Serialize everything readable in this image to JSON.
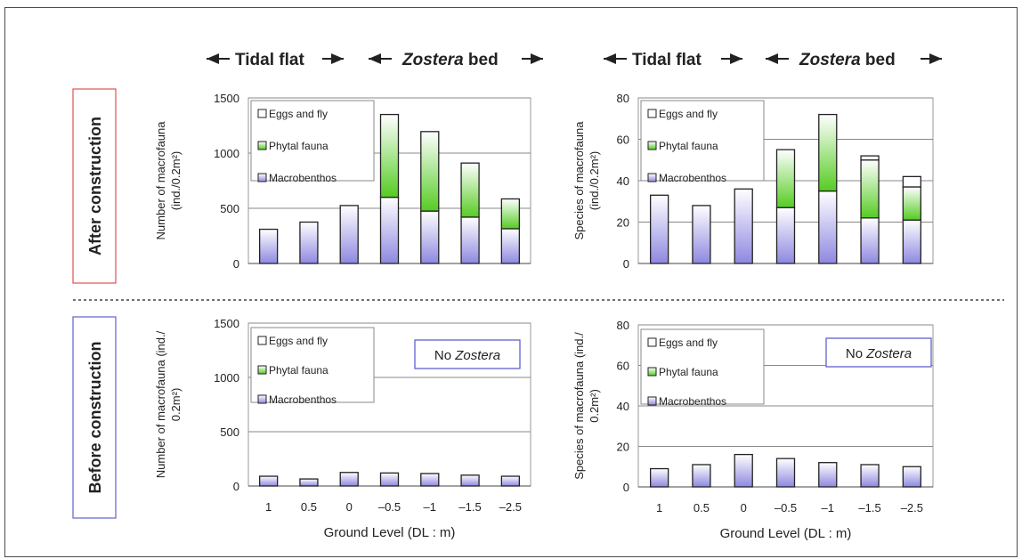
{
  "colors": {
    "macrobenthos_top": "#ffffff",
    "macrobenthos_bottom": "#8e88e0",
    "phytal_top": "#ffffff",
    "phytal_bottom": "#55cc22",
    "eggs": "#ffffff",
    "after_box": "#e05050",
    "before_box": "#6060d0",
    "inset_box": "#6060d0",
    "grid": "#888888",
    "bar_stroke": "#222222"
  },
  "headers": {
    "tidal_flat": "Tidal flat",
    "zostera": "Zostera",
    "bed": " bed"
  },
  "rows": {
    "after": "After construction",
    "before": "Before construction"
  },
  "inset": {
    "no": "No ",
    "zostera": "Zostera"
  },
  "chart_data": [
    {
      "id": "after-number",
      "type": "bar",
      "stacked": true,
      "categories": [
        "1",
        "0.5",
        "0",
        "-0.5",
        "-1",
        "-1.5",
        "-2.5"
      ],
      "show_categories": false,
      "ylabel_line1": "Number of macrofauna",
      "ylabel_line2": "(ind./0.2m²)",
      "ylim": [
        0,
        1500
      ],
      "yticks": [
        0,
        500,
        1000,
        1500
      ],
      "grid": true,
      "legend": [
        "Eggs and fly",
        "Phytal fauna",
        "Macrobenthos"
      ],
      "series": [
        {
          "name": "Macrobenthos",
          "values": [
            310,
            375,
            525,
            600,
            475,
            420,
            315
          ]
        },
        {
          "name": "Phytal fauna",
          "values": [
            0,
            0,
            0,
            750,
            720,
            490,
            270
          ]
        },
        {
          "name": "Eggs and fly",
          "values": [
            0,
            0,
            0,
            0,
            0,
            0,
            0
          ]
        }
      ]
    },
    {
      "id": "after-species",
      "type": "bar",
      "stacked": true,
      "categories": [
        "1",
        "0.5",
        "0",
        "-0.5",
        "-1",
        "-1.5",
        "-2.5"
      ],
      "show_categories": false,
      "ylabel_line1": "Species of macrofauna",
      "ylabel_line2": "(ind./0.2m²)",
      "ylim": [
        0,
        80
      ],
      "yticks": [
        0,
        20,
        40,
        60,
        80
      ],
      "grid": true,
      "legend": [
        "Eggs and fly",
        "Phytal fauna",
        "Macrobenthos"
      ],
      "series": [
        {
          "name": "Macrobenthos",
          "values": [
            33,
            28,
            36,
            27,
            35,
            22,
            21
          ]
        },
        {
          "name": "Phytal fauna",
          "values": [
            0,
            0,
            0,
            28,
            37,
            28,
            16
          ]
        },
        {
          "name": "Eggs and fly",
          "values": [
            0,
            0,
            0,
            0,
            0,
            2,
            5
          ]
        }
      ]
    },
    {
      "id": "before-number",
      "type": "bar",
      "stacked": true,
      "categories": [
        "1",
        "0.5",
        "0",
        "–0.5",
        "–1",
        "–1.5",
        "–2.5"
      ],
      "show_categories": true,
      "xlabel": "Ground Level (DL : m)",
      "ylabel_line1": "Number of macrofauna (ind./",
      "ylabel_line2": "0.2m²)",
      "ylim": [
        0,
        1500
      ],
      "yticks": [
        0,
        500,
        1000,
        1500
      ],
      "grid": true,
      "legend": [
        "Eggs and fly",
        "Phytal fauna",
        "Macrobenthos"
      ],
      "series": [
        {
          "name": "Macrobenthos",
          "values": [
            90,
            65,
            125,
            120,
            115,
            100,
            90
          ]
        },
        {
          "name": "Phytal fauna",
          "values": [
            0,
            0,
            0,
            0,
            0,
            0,
            0
          ]
        },
        {
          "name": "Eggs and fly",
          "values": [
            0,
            0,
            0,
            0,
            0,
            0,
            0
          ]
        }
      ]
    },
    {
      "id": "before-species",
      "type": "bar",
      "stacked": true,
      "categories": [
        "1",
        "0.5",
        "0",
        "–0.5",
        "–1",
        "–1.5",
        "–2.5"
      ],
      "show_categories": true,
      "xlabel": "Ground Level (DL : m)",
      "ylabel_line1": "Species of macrofauna (ind./",
      "ylabel_line2": "0.2m²)",
      "ylim": [
        0,
        80
      ],
      "yticks": [
        0,
        20,
        40,
        60,
        80
      ],
      "grid": true,
      "legend": [
        "Eggs and fly",
        "Phytal fauna",
        "Macrobenthos"
      ],
      "series": [
        {
          "name": "Macrobenthos",
          "values": [
            9,
            11,
            16,
            14,
            12,
            11,
            10
          ]
        },
        {
          "name": "Phytal fauna",
          "values": [
            0,
            0,
            0,
            0,
            0,
            0,
            0
          ]
        },
        {
          "name": "Eggs and fly",
          "values": [
            0,
            0,
            0,
            0,
            0,
            0,
            0
          ]
        }
      ]
    }
  ]
}
